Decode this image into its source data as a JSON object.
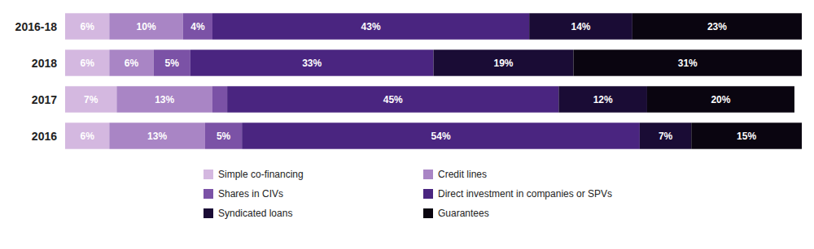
{
  "chart_data": {
    "type": "bar",
    "orientation": "horizontal",
    "stacked": true,
    "data_labels": true,
    "grid": false,
    "legend": "bottom",
    "tick_labels": "y",
    "categories": [
      "2016-18",
      "2018",
      "2017",
      "2016"
    ],
    "xlim": [
      0,
      100
    ],
    "series": [
      {
        "name": "Simple co-financing",
        "color": "#d4b8e0",
        "values": [
          6,
          6,
          7,
          6
        ],
        "value_labels": [
          "6%",
          "6%",
          "7%",
          "6%"
        ]
      },
      {
        "name": "Credit lines",
        "color": "#a985c5",
        "values": [
          10,
          6,
          13,
          13
        ],
        "value_labels": [
          "10%",
          "6%",
          "13%",
          "13%"
        ]
      },
      {
        "name": "Shares in CIVs",
        "color": "#7b52a6",
        "values": [
          4,
          5,
          2,
          5
        ],
        "value_labels": [
          "4%",
          "5%",
          null,
          "5%"
        ]
      },
      {
        "name": "Direct investment in companies or SPVs",
        "color": "#4a2580",
        "values": [
          43,
          33,
          45,
          54
        ],
        "value_labels": [
          "43%",
          "33%",
          "45%",
          "54%"
        ]
      },
      {
        "name": "Syndicated loans",
        "color": "#1a0c35",
        "values": [
          14,
          19,
          12,
          7
        ],
        "value_labels": [
          "14%",
          "19%",
          "12%",
          "7%"
        ]
      },
      {
        "name": "Guarantees",
        "color": "#0a0510",
        "values": [
          23,
          31,
          20,
          15
        ],
        "value_labels": [
          "23%",
          "31%",
          "20%",
          "15%"
        ]
      }
    ]
  }
}
